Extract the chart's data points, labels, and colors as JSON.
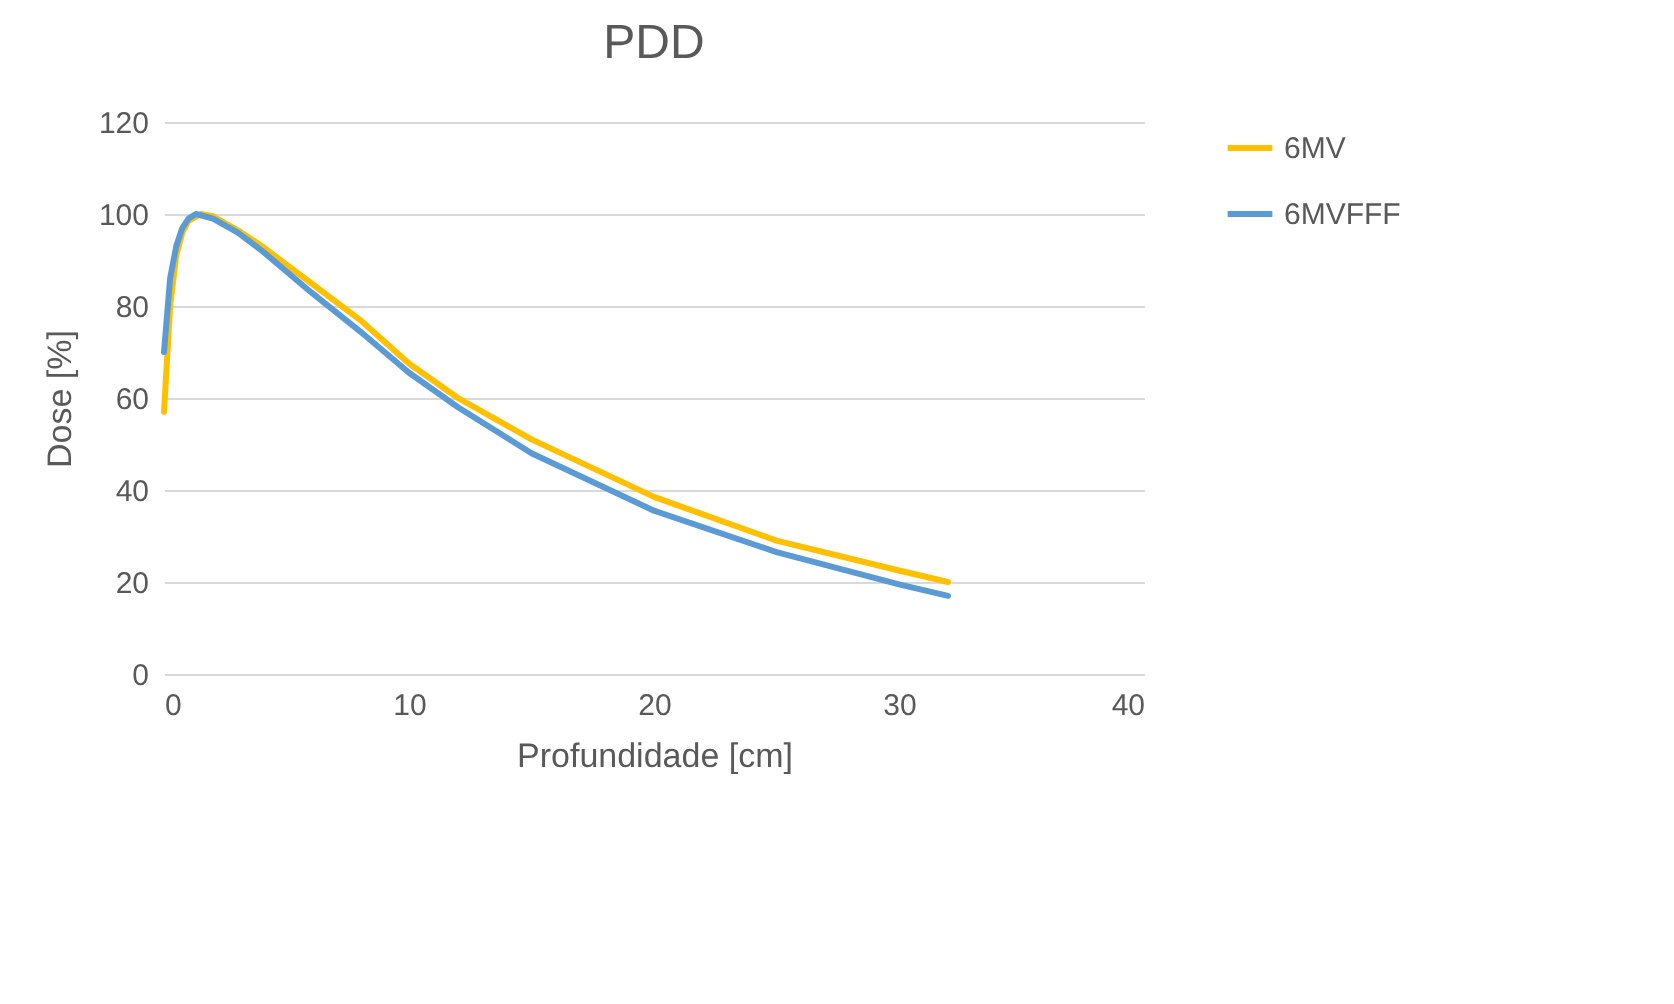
{
  "chart_data": {
    "type": "line",
    "title": "PDD",
    "xlabel": "Profundidade [cm]",
    "ylabel": "Dose [%]",
    "xlim": [
      0,
      40
    ],
    "xticks": [
      0,
      10,
      20,
      30,
      40
    ],
    "ylim": [
      0,
      120
    ],
    "yticks": [
      0,
      20,
      40,
      60,
      80,
      100,
      120
    ],
    "grid": "y",
    "legend": "right",
    "marker": "none",
    "line_style": "solid",
    "series": [
      {
        "name": "6MV",
        "color": "#ffc000",
        "x": [
          0,
          0.25,
          0.5,
          0.75,
          1,
          1.5,
          2,
          3,
          4,
          5,
          6,
          8,
          10,
          12,
          15,
          20,
          25,
          30,
          32
        ],
        "values": [
          57,
          80,
          91,
          96,
          98.5,
          100,
          99.5,
          96.5,
          93,
          89,
          85,
          77,
          67.5,
          60,
          51,
          38.5,
          29,
          22.5,
          20
        ]
      },
      {
        "name": "6MVFFF",
        "color": "#5b9bd5",
        "x": [
          0,
          0.25,
          0.5,
          0.75,
          1,
          1.3,
          2,
          3,
          4,
          5,
          6,
          8,
          10,
          12,
          15,
          20,
          25,
          30,
          32
        ],
        "values": [
          70,
          86,
          93,
          97,
          99,
          100,
          99,
          96,
          92,
          87.5,
          83,
          74.5,
          65.5,
          58,
          48,
          35.5,
          26.5,
          19.5,
          17
        ]
      }
    ]
  }
}
